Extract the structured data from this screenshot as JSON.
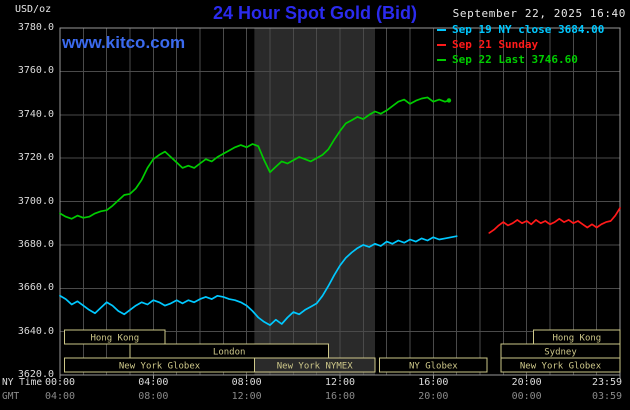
{
  "header": {
    "units_label": "USD/oz",
    "title": "24 Hour Spot Gold (Bid)",
    "datetime": "September 22, 2025 16:40",
    "watermark": "www.kitco.com"
  },
  "legend": [
    {
      "label": "Sep 19 NY close 3684.00",
      "color": "#00c8ff"
    },
    {
      "label": "Sep 21 Sunday",
      "color": "#ff1a1a"
    },
    {
      "label": "Sep 22 Last 3746.60",
      "color": "#00cc00"
    }
  ],
  "axes": {
    "y_ticks": [
      "3780.0",
      "3760.0",
      "3740.0",
      "3720.0",
      "3700.0",
      "3680.0",
      "3660.0",
      "3640.0",
      "3620.0"
    ],
    "x_row1_label": "NY Time",
    "x_row2_label": "GMT",
    "x_tick_hours": [
      0,
      4,
      8,
      12,
      16,
      20,
      24
    ],
    "x_ticks_ny": [
      "00:00",
      "04:00",
      "08:00",
      "12:00",
      "16:00",
      "20:00",
      "23:59"
    ],
    "x_ticks_gmt": [
      "04:00",
      "08:00",
      "12:00",
      "16:00",
      "20:00",
      "00:00",
      "03:59"
    ]
  },
  "sessions": [
    {
      "row": 0,
      "label": "Hong Kong",
      "start": 0.2,
      "end": 4.5
    },
    {
      "row": 0,
      "label": "Hong Kong",
      "start": 20.3,
      "end": 24
    },
    {
      "row": 1,
      "label": "London",
      "start": 3.0,
      "end": 11.5
    },
    {
      "row": 1,
      "label": "Sydney",
      "start": 18.9,
      "end": 24
    },
    {
      "row": 2,
      "label": "New York Globex",
      "start": 0.2,
      "end": 8.33
    },
    {
      "row": 2,
      "label": "New York NYMEX",
      "start": 8.33,
      "end": 13.5
    },
    {
      "row": 2,
      "label": "NY Globex",
      "start": 13.7,
      "end": 18.3
    },
    {
      "row": 2,
      "label": "New York Globex",
      "start": 18.9,
      "end": 24
    }
  ],
  "colors": {
    "background": "#000000",
    "title_blue": "#2b2bee",
    "watermark_blue": "#3b6aee",
    "grid": "#4a4a4a",
    "frame": "#999999",
    "band": "#2a2a2a",
    "session": "#cdc789",
    "axis_text": "#dcdcdc",
    "gmt_text": "#8a8a8a"
  },
  "chart_data": {
    "type": "line",
    "title": "24 Hour Spot Gold (Bid)",
    "xlabel": "NY Time (hours 00:00-23:59)",
    "ylabel": "USD/oz",
    "ylim": [
      3620,
      3780
    ],
    "xlim_hours": [
      0,
      24
    ],
    "grid": true,
    "legend_position": "top-right",
    "nymex_band_hours": [
      8.33,
      13.5
    ],
    "series": [
      {
        "id": "sep19",
        "name": "Sep 19 NY close 3684.00",
        "close_value": 3684.0,
        "color": "#00c8ff",
        "points": [
          [
            0,
            3656.5
          ],
          [
            0.25,
            3655
          ],
          [
            0.5,
            3652.5
          ],
          [
            0.75,
            3654
          ],
          [
            1,
            3652
          ],
          [
            1.25,
            3650
          ],
          [
            1.5,
            3648.5
          ],
          [
            1.75,
            3651
          ],
          [
            2,
            3653.5
          ],
          [
            2.25,
            3652
          ],
          [
            2.5,
            3649.5
          ],
          [
            2.75,
            3648
          ],
          [
            3,
            3650
          ],
          [
            3.25,
            3652
          ],
          [
            3.5,
            3653.5
          ],
          [
            3.75,
            3652.5
          ],
          [
            4,
            3654.5
          ],
          [
            4.25,
            3653.5
          ],
          [
            4.5,
            3652
          ],
          [
            4.75,
            3653
          ],
          [
            5,
            3654.5
          ],
          [
            5.25,
            3653
          ],
          [
            5.5,
            3654.5
          ],
          [
            5.75,
            3653.5
          ],
          [
            6,
            3655
          ],
          [
            6.25,
            3656
          ],
          [
            6.5,
            3655
          ],
          [
            6.75,
            3656.5
          ],
          [
            7,
            3656
          ],
          [
            7.25,
            3655
          ],
          [
            7.5,
            3654.5
          ],
          [
            7.75,
            3653.5
          ],
          [
            8,
            3652
          ],
          [
            8.25,
            3649.5
          ],
          [
            8.5,
            3646.5
          ],
          [
            8.75,
            3644.5
          ],
          [
            9,
            3643
          ],
          [
            9.25,
            3645.5
          ],
          [
            9.5,
            3643.5
          ],
          [
            9.75,
            3646.5
          ],
          [
            10,
            3649
          ],
          [
            10.25,
            3648
          ],
          [
            10.5,
            3650
          ],
          [
            10.75,
            3651.5
          ],
          [
            11,
            3653
          ],
          [
            11.25,
            3656.5
          ],
          [
            11.5,
            3661
          ],
          [
            11.75,
            3666
          ],
          [
            12,
            3670.5
          ],
          [
            12.25,
            3674
          ],
          [
            12.5,
            3676.5
          ],
          [
            12.75,
            3678.5
          ],
          [
            13,
            3680
          ],
          [
            13.25,
            3679
          ],
          [
            13.5,
            3680.5
          ],
          [
            13.75,
            3679.5
          ],
          [
            14,
            3681.5
          ],
          [
            14.25,
            3680.5
          ],
          [
            14.5,
            3682
          ],
          [
            14.75,
            3681
          ],
          [
            15,
            3682.5
          ],
          [
            15.25,
            3681.5
          ],
          [
            15.5,
            3683
          ],
          [
            15.75,
            3682
          ],
          [
            16,
            3683.5
          ],
          [
            16.25,
            3682.5
          ],
          [
            16.5,
            3683
          ],
          [
            16.75,
            3683.5
          ],
          [
            17,
            3684
          ]
        ]
      },
      {
        "id": "sep21",
        "name": "Sep 21 Sunday",
        "color": "#ff1a1a",
        "points": [
          [
            18.4,
            3685.5
          ],
          [
            18.6,
            3687
          ],
          [
            18.8,
            3689
          ],
          [
            19,
            3690.5
          ],
          [
            19.2,
            3689
          ],
          [
            19.4,
            3690
          ],
          [
            19.6,
            3691.5
          ],
          [
            19.8,
            3690
          ],
          [
            20,
            3691
          ],
          [
            20.2,
            3689.5
          ],
          [
            20.4,
            3691.5
          ],
          [
            20.6,
            3690
          ],
          [
            20.8,
            3691
          ],
          [
            21,
            3689.5
          ],
          [
            21.2,
            3690.5
          ],
          [
            21.4,
            3692
          ],
          [
            21.6,
            3690.5
          ],
          [
            21.8,
            3691.5
          ],
          [
            22,
            3690
          ],
          [
            22.2,
            3691
          ],
          [
            22.4,
            3689.5
          ],
          [
            22.6,
            3688
          ],
          [
            22.8,
            3689.5
          ],
          [
            23,
            3688
          ],
          [
            23.2,
            3689.5
          ],
          [
            23.4,
            3690.5
          ],
          [
            23.6,
            3691
          ],
          [
            23.8,
            3693.5
          ],
          [
            24,
            3697
          ]
        ]
      },
      {
        "id": "sep22",
        "name": "Sep 22 Last 3746.60",
        "last_value": 3746.6,
        "color": "#00cc00",
        "points": [
          [
            0,
            3694.5
          ],
          [
            0.25,
            3693
          ],
          [
            0.5,
            3692
          ],
          [
            0.75,
            3693.5
          ],
          [
            1,
            3692.5
          ],
          [
            1.25,
            3693
          ],
          [
            1.5,
            3694.5
          ],
          [
            1.75,
            3695.5
          ],
          [
            2,
            3696
          ],
          [
            2.25,
            3698
          ],
          [
            2.5,
            3700.5
          ],
          [
            2.75,
            3703
          ],
          [
            3,
            3703.5
          ],
          [
            3.25,
            3706
          ],
          [
            3.5,
            3710
          ],
          [
            3.75,
            3715.5
          ],
          [
            4,
            3719.5
          ],
          [
            4.25,
            3721.5
          ],
          [
            4.5,
            3723
          ],
          [
            4.75,
            3720.5
          ],
          [
            5,
            3718
          ],
          [
            5.25,
            3715.5
          ],
          [
            5.5,
            3716.5
          ],
          [
            5.75,
            3715.5
          ],
          [
            6,
            3717.5
          ],
          [
            6.25,
            3719.5
          ],
          [
            6.5,
            3718.5
          ],
          [
            6.75,
            3720.5
          ],
          [
            7,
            3722
          ],
          [
            7.25,
            3723.5
          ],
          [
            7.5,
            3725
          ],
          [
            7.75,
            3726
          ],
          [
            8,
            3725
          ],
          [
            8.25,
            3726.5
          ],
          [
            8.5,
            3725.5
          ],
          [
            8.75,
            3719
          ],
          [
            9,
            3713.5
          ],
          [
            9.25,
            3716
          ],
          [
            9.5,
            3718.5
          ],
          [
            9.75,
            3717.5
          ],
          [
            10,
            3719
          ],
          [
            10.25,
            3720.5
          ],
          [
            10.5,
            3719.5
          ],
          [
            10.75,
            3718.5
          ],
          [
            11,
            3720
          ],
          [
            11.25,
            3721.5
          ],
          [
            11.5,
            3724
          ],
          [
            11.75,
            3728.5
          ],
          [
            12,
            3732.5
          ],
          [
            12.25,
            3736
          ],
          [
            12.5,
            3737.5
          ],
          [
            12.75,
            3739
          ],
          [
            13,
            3738
          ],
          [
            13.25,
            3740
          ],
          [
            13.5,
            3741.5
          ],
          [
            13.75,
            3740.5
          ],
          [
            14,
            3742
          ],
          [
            14.25,
            3744
          ],
          [
            14.5,
            3746
          ],
          [
            14.75,
            3747
          ],
          [
            15,
            3745
          ],
          [
            15.25,
            3746.5
          ],
          [
            15.5,
            3747.5
          ],
          [
            15.75,
            3748
          ],
          [
            16,
            3746
          ],
          [
            16.25,
            3747
          ],
          [
            16.5,
            3746
          ],
          [
            16.67,
            3746.6
          ]
        ]
      }
    ]
  }
}
